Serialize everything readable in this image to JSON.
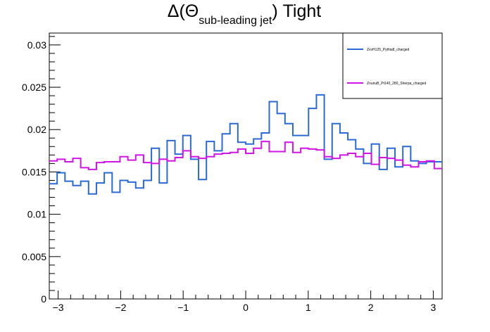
{
  "chart_data": {
    "type": "line",
    "title": {
      "prefix": "Δ(Θ",
      "subscript": "sub-leading jet",
      "suffix": ") Tight"
    },
    "xlabel": "",
    "ylabel": "",
    "xlim": [
      -3.1416,
      3.1416
    ],
    "ylim": [
      0,
      0.0314
    ],
    "x_ticks": [
      -3,
      -2,
      -1,
      0,
      1,
      2,
      3
    ],
    "x_tick_labels": [
      "−3",
      "−2",
      "−1",
      "0",
      "1",
      "2",
      "3"
    ],
    "y_ticks": [
      0,
      0.005,
      0.01,
      0.015,
      0.02,
      0.025,
      0.03
    ],
    "y_tick_labels": [
      "0",
      "0.005",
      "0.01",
      "0.015",
      "0.02",
      "0.025",
      "0.03"
    ],
    "grid": false,
    "legend_position": "top-right",
    "histogram_bins": 50,
    "series": [
      {
        "name": "ZvvH125_Pythia8_charged",
        "color": "#2a6ad8",
        "values": [
          0.0136,
          0.0149,
          0.0139,
          0.0134,
          0.0139,
          0.0124,
          0.0137,
          0.0149,
          0.0126,
          0.014,
          0.0138,
          0.0131,
          0.014,
          0.0178,
          0.0137,
          0.0187,
          0.0171,
          0.0193,
          0.0165,
          0.0141,
          0.0186,
          0.0175,
          0.0195,
          0.0207,
          0.0185,
          0.0183,
          0.0189,
          0.0196,
          0.0233,
          0.0219,
          0.0207,
          0.0193,
          0.0193,
          0.0225,
          0.0241,
          0.0165,
          0.0207,
          0.0196,
          0.0188,
          0.0177,
          0.016,
          0.0183,
          0.0153,
          0.0178,
          0.0156,
          0.018,
          0.0163,
          0.016,
          0.0162,
          0.0162
        ]
      },
      {
        "name": "ZnunuB_Pt140_280_Sherpa_charged",
        "color": "#d214e8",
        "values": [
          0.0163,
          0.0165,
          0.0162,
          0.0166,
          0.0155,
          0.0153,
          0.0161,
          0.0162,
          0.0162,
          0.0168,
          0.0164,
          0.017,
          0.0161,
          0.016,
          0.0165,
          0.0163,
          0.0167,
          0.0175,
          0.0168,
          0.0166,
          0.0168,
          0.0171,
          0.0172,
          0.0173,
          0.0177,
          0.0172,
          0.0178,
          0.0186,
          0.0174,
          0.0174,
          0.0185,
          0.0173,
          0.0178,
          0.0177,
          0.0176,
          0.0168,
          0.0166,
          0.017,
          0.0172,
          0.0168,
          0.0172,
          0.0159,
          0.0167,
          0.0166,
          0.0164,
          0.0158,
          0.0156,
          0.0162,
          0.0163,
          0.0154
        ]
      }
    ]
  }
}
